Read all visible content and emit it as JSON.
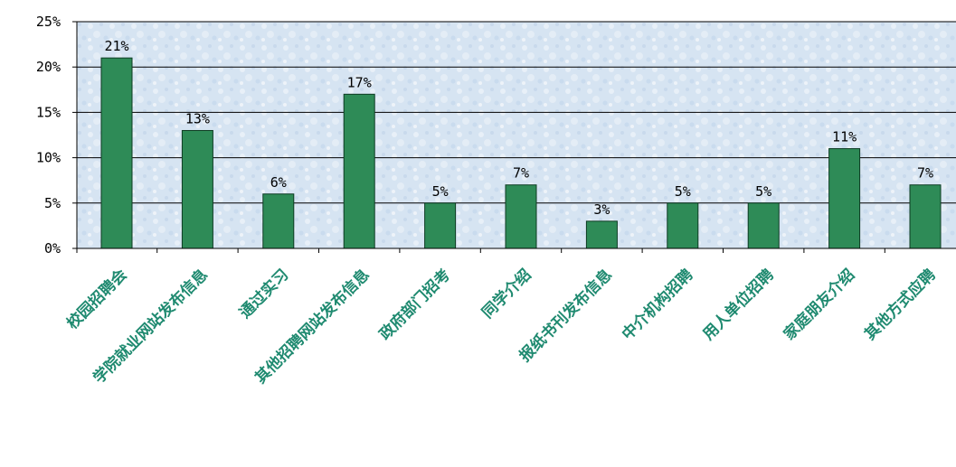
{
  "chart_data": {
    "type": "bar",
    "title": "",
    "xlabel": "",
    "ylabel": "",
    "categories": [
      "校园招聘会",
      "学院就业网站发布信息",
      "通过实习",
      "其他招聘网站发布信息",
      "政府部门招考",
      "同学介绍",
      "报纸书刊发布信息",
      "中介机构招聘",
      "用人单位招聘",
      "家庭朋友介绍",
      "其他方式应聘"
    ],
    "values": [
      21,
      13,
      6,
      17,
      5,
      7,
      3,
      5,
      5,
      11,
      7
    ],
    "value_labels": [
      "21%",
      "13%",
      "6%",
      "17%",
      "5%",
      "7%",
      "3%",
      "5%",
      "5%",
      "11%",
      "7%"
    ],
    "yticks": [
      "0%",
      "5%",
      "10%",
      "15%",
      "20%",
      "25%"
    ],
    "ylim": [
      0,
      25
    ],
    "grid": true,
    "legend": "none",
    "colors": {
      "bar": "#2e8b57",
      "bar_edge": "#0d3b22",
      "plot_bg": "#dbe7f3",
      "label": "#1f8a70",
      "grid": "#000000"
    }
  }
}
